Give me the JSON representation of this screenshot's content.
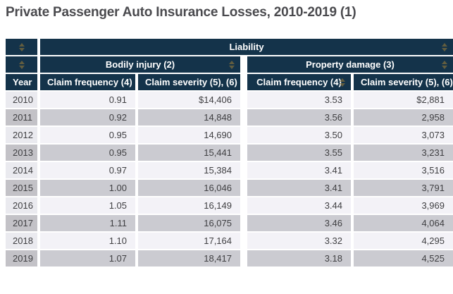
{
  "page_title": "Private Passenger Auto Insurance Losses, 2010-2019 (1)",
  "colors": {
    "header_bg": "#14334a",
    "header_text": "#ffffff",
    "row_light": "#f3f2f7",
    "row_light_year": "#eaeaef",
    "row_dark": "#cbcbd1",
    "row_dark_year": "#c3c2c7",
    "sort_icon": "#7d6b3c",
    "title_text": "#4a4a4e"
  },
  "icons": {
    "sort": "sort-arrows-icon"
  },
  "table": {
    "header": {
      "group_top": "Liability",
      "group_bodily": "Bodily injury (2)",
      "group_property": "Property damage (3)",
      "col_year": "Year",
      "col_bi_freq": "Claim frequency (4)",
      "col_bi_sev": "Claim severity (5), (6)",
      "col_pd_freq": "Claim frequency (4)",
      "col_pd_sev": "Claim severity (5), (6)"
    },
    "rows": [
      {
        "year": "2010",
        "bi_freq": "0.91",
        "bi_sev": "$14,406",
        "pd_freq": "3.53",
        "pd_sev": "$2,881"
      },
      {
        "year": "2011",
        "bi_freq": "0.92",
        "bi_sev": "14,848",
        "pd_freq": "3.56",
        "pd_sev": "2,958"
      },
      {
        "year": "2012",
        "bi_freq": "0.95",
        "bi_sev": "14,690",
        "pd_freq": "3.50",
        "pd_sev": "3,073"
      },
      {
        "year": "2013",
        "bi_freq": "0.95",
        "bi_sev": "15,441",
        "pd_freq": "3.55",
        "pd_sev": "3,231"
      },
      {
        "year": "2014",
        "bi_freq": "0.97",
        "bi_sev": "15,384",
        "pd_freq": "3.41",
        "pd_sev": "3,516"
      },
      {
        "year": "2015",
        "bi_freq": "1.00",
        "bi_sev": "16,046",
        "pd_freq": "3.41",
        "pd_sev": "3,791"
      },
      {
        "year": "2016",
        "bi_freq": "1.05",
        "bi_sev": "16,149",
        "pd_freq": "3.44",
        "pd_sev": "3,969"
      },
      {
        "year": "2017",
        "bi_freq": "1.11",
        "bi_sev": "16,075",
        "pd_freq": "3.46",
        "pd_sev": "4,064"
      },
      {
        "year": "2018",
        "bi_freq": "1.10",
        "bi_sev": "17,164",
        "pd_freq": "3.32",
        "pd_sev": "4,295"
      },
      {
        "year": "2019",
        "bi_freq": "1.07",
        "bi_sev": "18,417",
        "pd_freq": "3.18",
        "pd_sev": "4,525"
      }
    ]
  }
}
